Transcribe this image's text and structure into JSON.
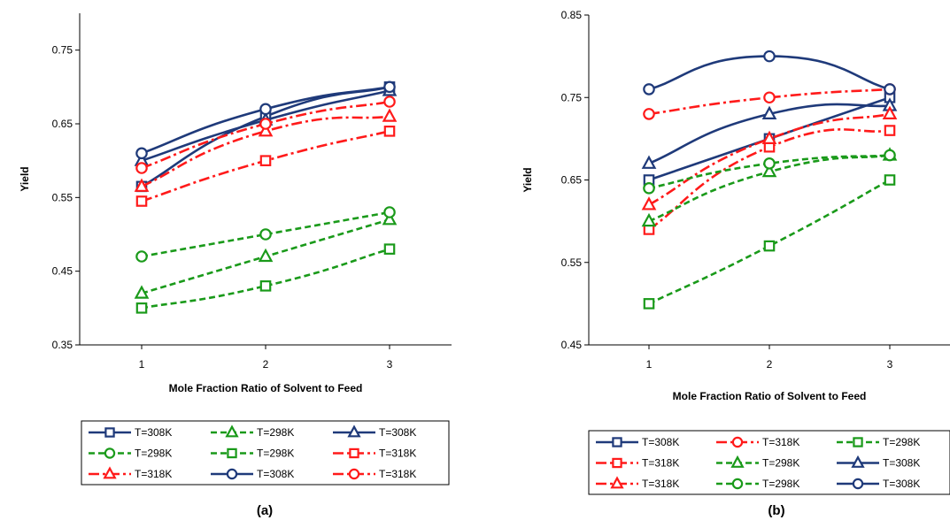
{
  "colors": {
    "blue": "#1f3a7a",
    "red": "#ff1a1a",
    "green": "#1a9a1a"
  },
  "chart_data": [
    {
      "type": "line",
      "panel_label": "(a)",
      "xlabel": "Mole Fraction Ratio of Solvent to Feed",
      "ylabel": "Yield",
      "x": [
        1,
        2,
        3
      ],
      "xlim": [
        0.5,
        3.5
      ],
      "ylim": [
        0.35,
        0.8
      ],
      "yticks": [
        "0.35",
        "0.45",
        "0.55",
        "0.65",
        "0.75"
      ],
      "xticks": [
        "1",
        "2",
        "3"
      ],
      "grid": false,
      "legend_position": "bottom",
      "series": [
        {
          "name": "T=308K",
          "color": "blue",
          "dash": "solid",
          "marker": "square",
          "values": [
            0.565,
            0.66,
            0.7
          ]
        },
        {
          "name": "T=298K",
          "color": "green",
          "dash": "dash",
          "marker": "triangle",
          "values": [
            0.42,
            0.47,
            0.52
          ]
        },
        {
          "name": "T=308K",
          "color": "blue",
          "dash": "solid",
          "marker": "triangle",
          "values": [
            0.6,
            0.655,
            0.695
          ]
        },
        {
          "name": "T=298K",
          "color": "green",
          "dash": "dash",
          "marker": "circle",
          "values": [
            0.47,
            0.5,
            0.53
          ]
        },
        {
          "name": "T=298K",
          "color": "green",
          "dash": "dash",
          "marker": "square",
          "values": [
            0.4,
            0.43,
            0.48
          ]
        },
        {
          "name": "T=318K",
          "color": "red",
          "dash": "dashdot",
          "marker": "square",
          "values": [
            0.545,
            0.6,
            0.64
          ]
        },
        {
          "name": "T=318K",
          "color": "red",
          "dash": "dashdot",
          "marker": "triangle",
          "values": [
            0.565,
            0.64,
            0.66
          ]
        },
        {
          "name": "T=308K",
          "color": "blue",
          "dash": "solid",
          "marker": "circle",
          "values": [
            0.61,
            0.67,
            0.7
          ]
        },
        {
          "name": "T=318K",
          "color": "red",
          "dash": "dashdot",
          "marker": "circle",
          "values": [
            0.59,
            0.65,
            0.68
          ]
        }
      ]
    },
    {
      "type": "line",
      "panel_label": "(b)",
      "xlabel": "Mole Fraction Ratio of Solvent to Feed",
      "ylabel": "Yield",
      "x": [
        1,
        2,
        3
      ],
      "xlim": [
        0.5,
        3.5
      ],
      "ylim": [
        0.45,
        0.85
      ],
      "yticks": [
        "0.45",
        "0.55",
        "0.65",
        "0.75",
        "0.85"
      ],
      "xticks": [
        "1",
        "2",
        "3"
      ],
      "grid": false,
      "legend_position": "bottom",
      "series": [
        {
          "name": "T=308K",
          "color": "blue",
          "dash": "solid",
          "marker": "square",
          "values": [
            0.65,
            0.7,
            0.75
          ]
        },
        {
          "name": "T=318K",
          "color": "red",
          "dash": "dashdot",
          "marker": "circle",
          "values": [
            0.73,
            0.75,
            0.76
          ]
        },
        {
          "name": "T=298K",
          "color": "green",
          "dash": "dash",
          "marker": "square",
          "values": [
            0.5,
            0.57,
            0.65
          ]
        },
        {
          "name": "T=318K",
          "color": "red",
          "dash": "dashdot",
          "marker": "square",
          "values": [
            0.59,
            0.69,
            0.71
          ]
        },
        {
          "name": "T=298K",
          "color": "green",
          "dash": "dash",
          "marker": "triangle",
          "values": [
            0.6,
            0.66,
            0.68
          ]
        },
        {
          "name": "T=308K",
          "color": "blue",
          "dash": "solid",
          "marker": "triangle",
          "values": [
            0.67,
            0.73,
            0.74
          ]
        },
        {
          "name": "T=318K",
          "color": "red",
          "dash": "dashdot",
          "marker": "triangle",
          "values": [
            0.62,
            0.7,
            0.73
          ]
        },
        {
          "name": "T=298K",
          "color": "green",
          "dash": "dash",
          "marker": "circle",
          "values": [
            0.64,
            0.67,
            0.68
          ]
        },
        {
          "name": "T=308K",
          "color": "blue",
          "dash": "solid",
          "marker": "circle",
          "values": [
            0.76,
            0.8,
            0.76
          ]
        }
      ]
    }
  ]
}
